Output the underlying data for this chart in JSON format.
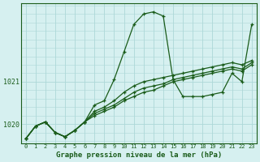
{
  "title": "Graphe pression niveau de la mer (hPa)",
  "bg_color": "#d6f0f0",
  "grid_color": "#add8d8",
  "line_color": "#1a5c1a",
  "xlim": [
    -0.5,
    23.5
  ],
  "ylim": [
    1019.55,
    1022.85
  ],
  "yticks": [
    1020,
    1021
  ],
  "xticks": [
    0,
    1,
    2,
    3,
    4,
    5,
    6,
    7,
    8,
    9,
    10,
    11,
    12,
    13,
    14,
    15,
    16,
    17,
    18,
    19,
    20,
    21,
    22,
    23
  ],
  "series": [
    [
      1019.65,
      1019.95,
      1020.05,
      1019.8,
      1019.7,
      1019.85,
      1020.05,
      1020.45,
      1020.55,
      1021.05,
      1021.7,
      1022.35,
      1022.6,
      1022.65,
      1022.55,
      1021.05,
      1020.65,
      1020.65,
      1020.65,
      1020.7,
      1020.75,
      1021.2,
      1021.0,
      1022.35
    ],
    [
      1019.65,
      1019.95,
      1020.05,
      1019.8,
      1019.7,
      1019.85,
      1020.05,
      1020.3,
      1020.4,
      1020.55,
      1020.75,
      1020.9,
      1021.0,
      1021.05,
      1021.1,
      1021.15,
      1021.2,
      1021.25,
      1021.3,
      1021.35,
      1021.4,
      1021.45,
      1021.4,
      1021.5
    ],
    [
      1019.65,
      1019.95,
      1020.05,
      1019.8,
      1019.7,
      1019.85,
      1020.05,
      1020.25,
      1020.35,
      1020.45,
      1020.6,
      1020.75,
      1020.85,
      1020.9,
      1020.95,
      1021.05,
      1021.1,
      1021.15,
      1021.2,
      1021.25,
      1021.3,
      1021.35,
      1021.3,
      1021.45
    ],
    [
      1019.65,
      1019.95,
      1020.05,
      1019.8,
      1019.7,
      1019.85,
      1020.05,
      1020.2,
      1020.3,
      1020.4,
      1020.55,
      1020.65,
      1020.75,
      1020.8,
      1020.9,
      1021.0,
      1021.05,
      1021.1,
      1021.15,
      1021.2,
      1021.25,
      1021.3,
      1021.25,
      1021.4
    ]
  ]
}
